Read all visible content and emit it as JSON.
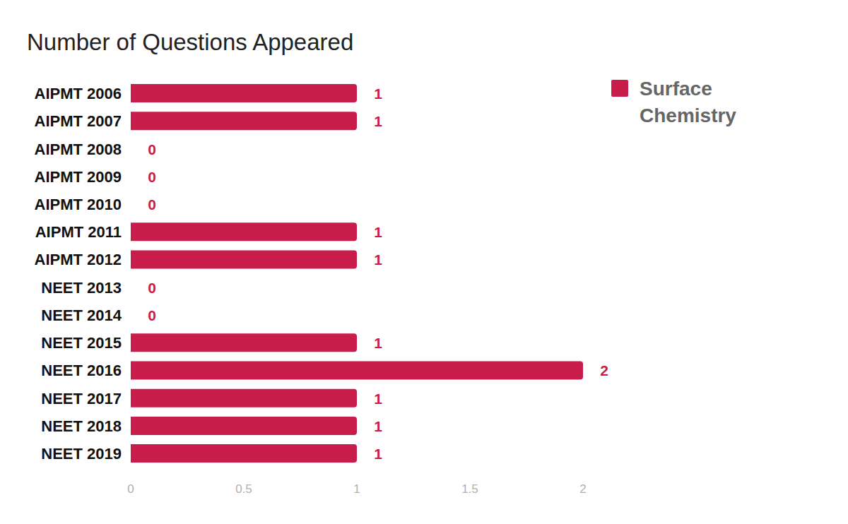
{
  "chart_data": {
    "type": "bar",
    "title": "Number of Questions Appeared",
    "orientation": "horizontal",
    "categories": [
      "AIPMT 2006",
      "AIPMT 2007",
      "AIPMT 2008",
      "AIPMT 2009",
      "AIPMT 2010",
      "AIPMT 2011",
      "AIPMT 2012",
      "NEET 2013",
      "NEET 2014",
      "NEET 2015",
      "NEET 2016",
      "NEET 2017",
      "NEET 2018",
      "NEET 2019"
    ],
    "series": [
      {
        "name": "Surface Chemistry",
        "color": "#c81d4a",
        "values": [
          1,
          1,
          0,
          0,
          0,
          1,
          1,
          0,
          0,
          1,
          2,
          1,
          1,
          1
        ]
      }
    ],
    "xlim": [
      0,
      2
    ],
    "xticks": [
      0,
      0.5,
      1,
      1.5,
      2
    ],
    "grid": false,
    "legend": "top-right",
    "data_labels": true
  }
}
